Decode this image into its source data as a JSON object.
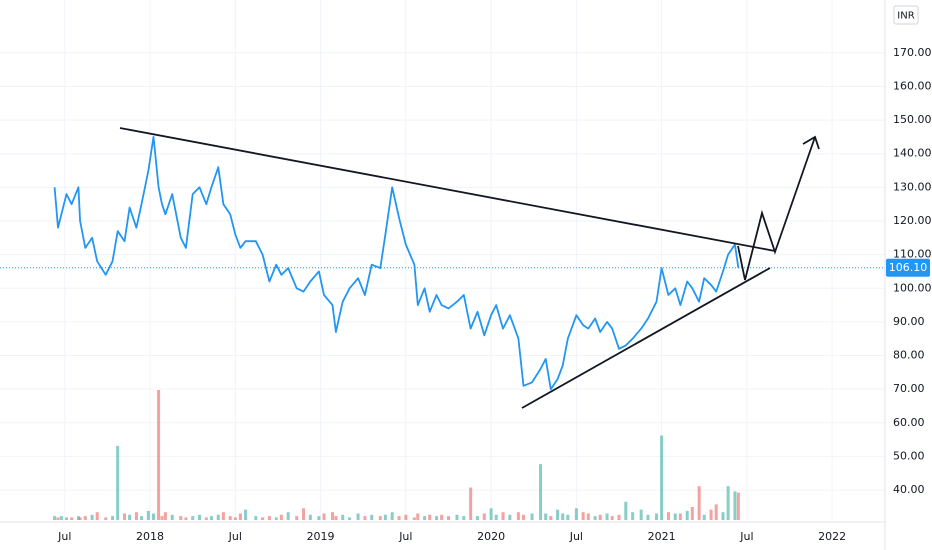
{
  "chart_data": {
    "type": "line",
    "currency": "INR",
    "color": "#2196f3",
    "grid": true,
    "xlim": [
      2017.12,
      2022.31
    ],
    "ylim": [
      31.1,
      185.7
    ],
    "xticks": [
      {
        "value": 2017.5,
        "label": "Jul"
      },
      2018,
      {
        "value": 2018.5,
        "label": "Jul"
      },
      2019,
      {
        "value": 2019.5,
        "label": "Jul"
      },
      2020,
      {
        "value": 2020.5,
        "label": "Jul"
      },
      2021,
      {
        "value": 2021.5,
        "label": "Jul"
      },
      2022
    ],
    "yticks": [
      {
        "value": 40,
        "label": "40.00"
      },
      {
        "value": 50,
        "label": "50.00"
      },
      {
        "value": 60,
        "label": "60.00"
      },
      {
        "value": 70,
        "label": "70.00"
      },
      {
        "value": 80,
        "label": "80.00"
      },
      {
        "value": 90,
        "label": "90.00"
      },
      {
        "value": 100,
        "label": "100.00"
      },
      {
        "value": 110,
        "label": "110.00"
      },
      {
        "value": 120,
        "label": "120.00"
      },
      {
        "value": 130,
        "label": "130.00"
      },
      {
        "value": 140,
        "label": "140.00"
      },
      {
        "value": 150,
        "label": "150.00"
      },
      {
        "value": 160,
        "label": "160.00"
      },
      {
        "value": 170,
        "label": "170.00"
      }
    ],
    "last_price": {
      "value": 106.1,
      "label": "106.10"
    },
    "x": [
      2017.44,
      2017.46,
      2017.48,
      2017.51,
      2017.54,
      2017.58,
      2017.59,
      2017.62,
      2017.66,
      2017.69,
      2017.74,
      2017.78,
      2017.81,
      2017.85,
      2017.88,
      2017.92,
      2017.95,
      2017.99,
      2018.02,
      2018.05,
      2018.07,
      2018.09,
      2018.13,
      2018.18,
      2018.21,
      2018.25,
      2018.29,
      2018.33,
      2018.36,
      2018.4,
      2018.43,
      2018.47,
      2018.5,
      2018.53,
      2018.56,
      2018.62,
      2018.66,
      2018.7,
      2018.74,
      2018.77,
      2018.81,
      2018.86,
      2018.9,
      2018.94,
      2018.99,
      2019.02,
      2019.07,
      2019.09,
      2019.13,
      2019.17,
      2019.22,
      2019.26,
      2019.3,
      2019.35,
      2019.38,
      2019.42,
      2019.46,
      2019.5,
      2019.55,
      2019.57,
      2019.61,
      2019.64,
      2019.68,
      2019.71,
      2019.75,
      2019.8,
      2019.84,
      2019.88,
      2019.92,
      2019.96,
      2020.0,
      2020.03,
      2020.07,
      2020.11,
      2020.16,
      2020.19,
      2020.24,
      2020.29,
      2020.32,
      2020.35,
      2020.39,
      2020.42,
      2020.45,
      2020.5,
      2020.54,
      2020.57,
      2020.61,
      2020.64,
      2020.68,
      2020.71,
      2020.75,
      2020.79,
      2020.83,
      2020.88,
      2020.92,
      2020.97,
      2021.0,
      2021.04,
      2021.08,
      2021.11,
      2021.15,
      2021.18,
      2021.22,
      2021.25,
      2021.29,
      2021.32,
      2021.36,
      2021.39,
      2021.43,
      2021.45
    ],
    "values": [
      130,
      118,
      122,
      128,
      125,
      130,
      120,
      112,
      115,
      108,
      104,
      108,
      117,
      114,
      124,
      118,
      125,
      135,
      145,
      130,
      125,
      122,
      128,
      115,
      112,
      128,
      130,
      125,
      130,
      136,
      125,
      122,
      116,
      112,
      114,
      114,
      110,
      102,
      107,
      104,
      106,
      100,
      99,
      102,
      105,
      98,
      95,
      87,
      96,
      100,
      103,
      98,
      107,
      106,
      116,
      130,
      121,
      113,
      107,
      95,
      100,
      93,
      98,
      95,
      94,
      96,
      98,
      88,
      93,
      86,
      92,
      95,
      88,
      92,
      85,
      71,
      72,
      76,
      79,
      70,
      73,
      77,
      85,
      92,
      89,
      88,
      91,
      87,
      90,
      88,
      82,
      83,
      85,
      88,
      91,
      96,
      106,
      98,
      100,
      95,
      102,
      100,
      96,
      103,
      101,
      99,
      105,
      110,
      113,
      106
    ],
    "volume": {
      "vlim": [
        0,
        100
      ],
      "up_color": "rgba(38,166,154,0.55)",
      "down_color": "rgba(239,83,80,0.55)",
      "values": [
        3,
        2,
        3,
        2,
        2,
        3,
        2,
        3,
        4,
        6,
        2,
        3,
        57,
        5,
        4,
        6,
        3,
        7,
        5,
        100,
        3,
        6,
        4,
        3,
        2,
        3,
        4,
        2,
        3,
        4,
        6,
        3,
        2,
        5,
        8,
        3,
        2,
        3,
        2,
        4,
        6,
        3,
        9,
        4,
        3,
        5,
        6,
        3,
        4,
        2,
        5,
        3,
        4,
        3,
        4,
        6,
        3,
        4,
        2,
        5,
        3,
        4,
        3,
        4,
        3,
        4,
        3,
        25,
        3,
        5,
        9,
        4,
        6,
        4,
        6,
        4,
        5,
        43,
        5,
        3,
        8,
        5,
        4,
        9,
        6,
        5,
        3,
        4,
        5,
        3,
        4,
        14,
        6,
        8,
        4,
        5,
        65,
        6,
        5,
        5,
        7,
        10,
        26,
        4,
        8,
        12,
        6,
        26,
        22,
        21
      ]
    }
  }
}
